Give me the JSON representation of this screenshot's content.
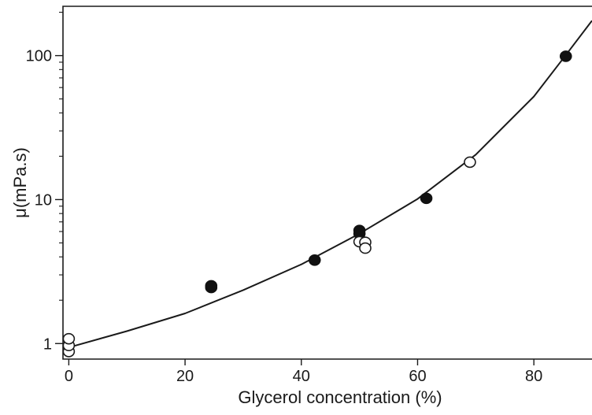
{
  "chart_data": {
    "type": "scatter",
    "title": "",
    "xlabel": "Glycerol concentration (%)",
    "ylabel": "μ(mPa.s)",
    "xlim": [
      -1,
      90
    ],
    "ylim": [
      0.78,
      220
    ],
    "yscale": "log",
    "grid": false,
    "x_ticks": [
      0,
      20,
      40,
      60,
      80
    ],
    "x_tick_labels": [
      "0",
      "20",
      "40",
      "60",
      "80"
    ],
    "y_ticks": [
      1,
      10,
      100
    ],
    "y_tick_labels": [
      "1",
      "10",
      "100"
    ],
    "colors": {
      "axis": "#1a1a1a",
      "curve": "#1a1a1a",
      "filled_marker": "#111111",
      "open_marker_fill": "#ffffff",
      "open_marker_edge": "#1a1a1a"
    },
    "series": [
      {
        "marker": "filled-circle",
        "points": [
          {
            "x": 24.5,
            "y": 2.45
          },
          {
            "x": 24.5,
            "y": 2.52
          },
          {
            "x": 42.3,
            "y": 3.8
          },
          {
            "x": 50.0,
            "y": 5.8
          },
          {
            "x": 50.0,
            "y": 6.1
          },
          {
            "x": 61.5,
            "y": 10.2
          },
          {
            "x": 85.5,
            "y": 99
          }
        ]
      },
      {
        "marker": "open-circle",
        "points": [
          {
            "x": 0,
            "y": 0.88
          },
          {
            "x": 0,
            "y": 0.97
          },
          {
            "x": 0,
            "y": 1.08
          },
          {
            "x": 50.0,
            "y": 5.1
          },
          {
            "x": 51.0,
            "y": 5.05
          },
          {
            "x": 51.0,
            "y": 4.6
          },
          {
            "x": 69.0,
            "y": 18.2
          }
        ]
      },
      {
        "marker": "line",
        "points": [
          {
            "x": 0,
            "y": 0.94
          },
          {
            "x": 10,
            "y": 1.22
          },
          {
            "x": 20,
            "y": 1.62
          },
          {
            "x": 30,
            "y": 2.35
          },
          {
            "x": 40,
            "y": 3.55
          },
          {
            "x": 50,
            "y": 5.8
          },
          {
            "x": 60,
            "y": 10.1
          },
          {
            "x": 70,
            "y": 20.5
          },
          {
            "x": 80,
            "y": 52
          },
          {
            "x": 85,
            "y": 95
          },
          {
            "x": 90,
            "y": 175
          }
        ]
      }
    ]
  }
}
